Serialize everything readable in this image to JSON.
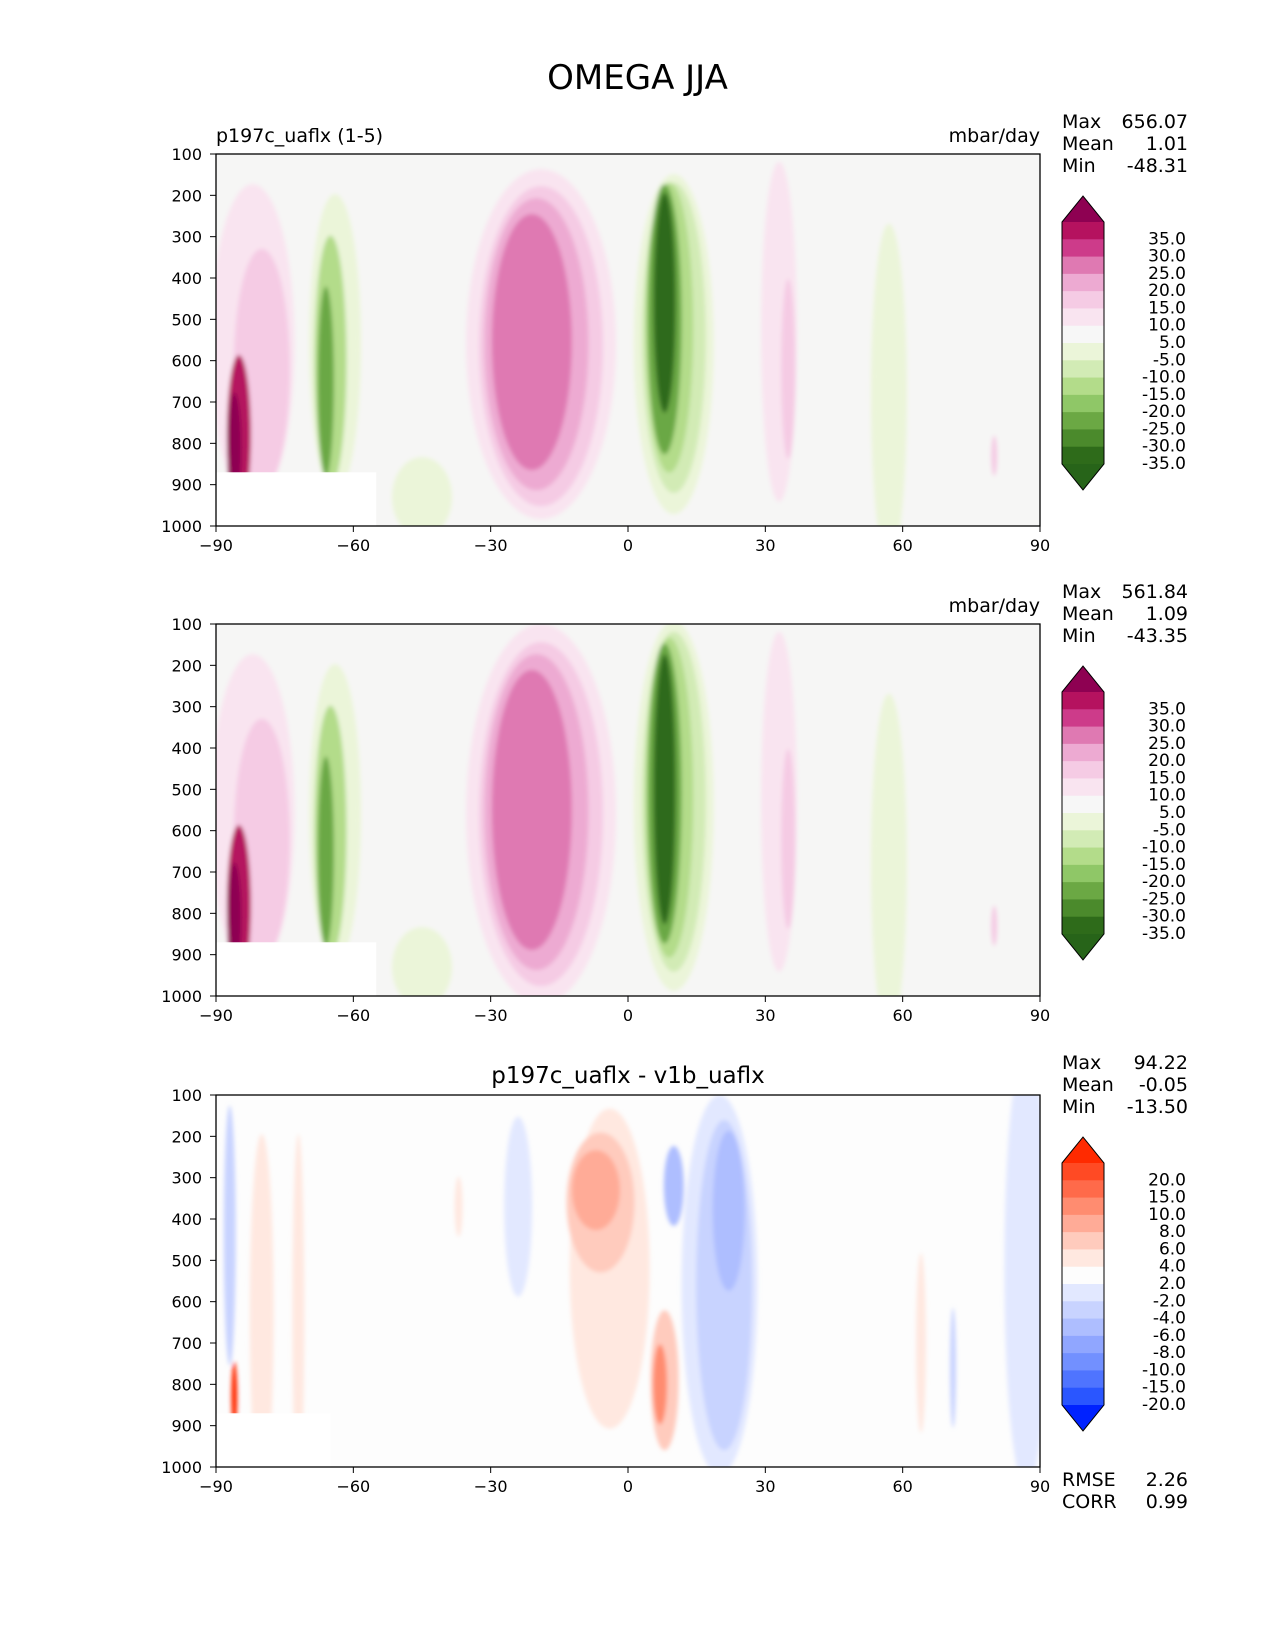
{
  "figure": {
    "title": "OMEGA JJA"
  },
  "chart_data": [
    {
      "type": "contour",
      "panel": "test",
      "title": "",
      "left_title": "p197c_uaflx (1-5)",
      "units": "mbar/day",
      "stats": {
        "max_label": "Max",
        "max": "656.07",
        "mean_label": "Mean",
        "mean": "1.01",
        "min_label": "Min",
        "min": "-48.31"
      },
      "xlim": [
        -90,
        90
      ],
      "ylim": [
        1000,
        100
      ],
      "x_ticks": [
        -90,
        -60,
        -30,
        0,
        30,
        60,
        90
      ],
      "x_tick_labels": [
        "−90",
        "−60",
        "−30",
        "0",
        "30",
        "60",
        "90"
      ],
      "y_ticks": [
        100,
        200,
        300,
        400,
        500,
        600,
        700,
        800,
        900,
        1000
      ],
      "y_tick_labels": [
        "100",
        "200",
        "300",
        "400",
        "500",
        "600",
        "700",
        "800",
        "900",
        "1000"
      ],
      "colorbar": {
        "levels": [
          "35.0",
          "30.0",
          "25.0",
          "20.0",
          "15.0",
          "10.0",
          "5.0",
          "-5.0",
          "-10.0",
          "-15.0",
          "-20.0",
          "-25.0",
          "-30.0",
          "-35.0"
        ],
        "colors": [
          "#8e0152",
          "#b5125f",
          "#cd3b8a",
          "#df79b2",
          "#edaad2",
          "#f5cbe4",
          "#f9e4f0",
          "#f7f7f7",
          "#ebf5d9",
          "#d2ebb5",
          "#b3dc8a",
          "#8fc767",
          "#6ba844",
          "#4b8a2c",
          "#2e6b1a",
          "#276419"
        ],
        "extend": "both"
      },
      "features": [
        {
          "kind": "descent_max",
          "lon": [
            -25,
            -12
          ],
          "plev": [
            280,
            850
          ],
          "value": 25
        },
        {
          "kind": "ascent_max",
          "lon": [
            5,
            12
          ],
          "plev": [
            250,
            800
          ],
          "value": -35
        },
        {
          "kind": "ascent",
          "lon": [
            -68,
            -62
          ],
          "plev": [
            330,
            860
          ],
          "value": -25
        },
        {
          "kind": "descent",
          "lon": [
            -88,
            -82
          ],
          "plev": [
            650,
            870
          ],
          "value": 35
        }
      ]
    },
    {
      "type": "contour",
      "panel": "reference",
      "title": "",
      "left_title": "",
      "units": "mbar/day",
      "stats": {
        "max_label": "Max",
        "max": "561.84",
        "mean_label": "Mean",
        "mean": "1.09",
        "min_label": "Min",
        "min": "-43.35"
      },
      "xlim": [
        -90,
        90
      ],
      "ylim": [
        1000,
        100
      ],
      "x_ticks": [
        -90,
        -60,
        -30,
        0,
        30,
        60,
        90
      ],
      "x_tick_labels": [
        "−90",
        "−60",
        "−30",
        "0",
        "30",
        "60",
        "90"
      ],
      "y_ticks": [
        100,
        200,
        300,
        400,
        500,
        600,
        700,
        800,
        900,
        1000
      ],
      "y_tick_labels": [
        "100",
        "200",
        "300",
        "400",
        "500",
        "600",
        "700",
        "800",
        "900",
        "1000"
      ],
      "colorbar": {
        "levels": [
          "35.0",
          "30.0",
          "25.0",
          "20.0",
          "15.0",
          "10.0",
          "5.0",
          "-5.0",
          "-10.0",
          "-15.0",
          "-20.0",
          "-25.0",
          "-30.0",
          "-35.0"
        ],
        "colors": [
          "#8e0152",
          "#b5125f",
          "#cd3b8a",
          "#df79b2",
          "#edaad2",
          "#f5cbe4",
          "#f9e4f0",
          "#f7f7f7",
          "#ebf5d9",
          "#d2ebb5",
          "#b3dc8a",
          "#8fc767",
          "#6ba844",
          "#4b8a2c",
          "#2e6b1a",
          "#276419"
        ],
        "extend": "both"
      },
      "features": [
        {
          "kind": "descent_max",
          "lon": [
            -25,
            -12
          ],
          "plev": [
            260,
            860
          ],
          "value": 25
        },
        {
          "kind": "ascent_max",
          "lon": [
            5,
            12
          ],
          "plev": [
            230,
            820
          ],
          "value": -35
        },
        {
          "kind": "ascent",
          "lon": [
            -68,
            -62
          ],
          "plev": [
            330,
            860
          ],
          "value": -25
        },
        {
          "kind": "descent",
          "lon": [
            -88,
            -82
          ],
          "plev": [
            650,
            870
          ],
          "value": 35
        }
      ]
    },
    {
      "type": "contour",
      "panel": "difference",
      "title": "p197c_uaflx - v1b_uaflx",
      "left_title": "",
      "units": "",
      "stats": {
        "max_label": "Max",
        "max": "94.22",
        "mean_label": "Mean",
        "mean": "-0.05",
        "min_label": "Min",
        "min": "-13.50"
      },
      "extra_stats": {
        "rmse_label": "RMSE",
        "rmse": "2.26",
        "corr_label": "CORR",
        "corr": "0.99"
      },
      "xlim": [
        -90,
        90
      ],
      "ylim": [
        1000,
        100
      ],
      "x_ticks": [
        -90,
        -60,
        -30,
        0,
        30,
        60,
        90
      ],
      "x_tick_labels": [
        "−90",
        "−60",
        "−30",
        "0",
        "30",
        "60",
        "90"
      ],
      "y_ticks": [
        100,
        200,
        300,
        400,
        500,
        600,
        700,
        800,
        900,
        1000
      ],
      "y_tick_labels": [
        "100",
        "200",
        "300",
        "400",
        "500",
        "600",
        "700",
        "800",
        "900",
        "1000"
      ],
      "colorbar": {
        "levels": [
          "20.0",
          "15.0",
          "10.0",
          "8.0",
          "6.0",
          "4.0",
          "2.0",
          "-2.0",
          "-4.0",
          "-6.0",
          "-8.0",
          "-10.0",
          "-15.0",
          "-20.0"
        ],
        "colors": [
          "#ff2a00",
          "#ff4a24",
          "#ff6a4a",
          "#ff8c70",
          "#ffab97",
          "#ffcbbd",
          "#ffe8e0",
          "#fdfdfd",
          "#e2e8ff",
          "#c8d3ff",
          "#aebeff",
          "#90a6ff",
          "#7290ff",
          "#4f74ff",
          "#2a56ff",
          "#0022ff"
        ],
        "extend": "both"
      },
      "features": [
        {
          "kind": "positive",
          "lon": [
            -12,
            2
          ],
          "plev": [
            230,
            500
          ],
          "value": 6
        },
        {
          "kind": "negative",
          "lon": [
            15,
            25
          ],
          "plev": [
            270,
            470
          ],
          "value": -8
        },
        {
          "kind": "positive",
          "lon": [
            5,
            10
          ],
          "plev": [
            720,
            880
          ],
          "value": 6
        },
        {
          "kind": "positive",
          "lon": [
            -87,
            -85
          ],
          "plev": [
            780,
            870
          ],
          "value": 20
        }
      ]
    }
  ]
}
